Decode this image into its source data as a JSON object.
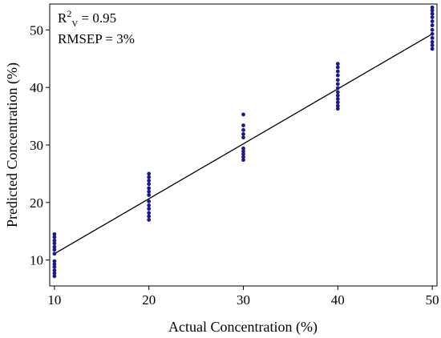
{
  "chart_data": {
    "type": "scatter",
    "xlabel": "Actual Concentration (%)",
    "ylabel": "Predicted Concentration (%)",
    "xlim": [
      9.5,
      50.5
    ],
    "ylim": [
      5.5,
      54.5
    ],
    "x_ticks": [
      10,
      20,
      30,
      40,
      50
    ],
    "y_ticks": [
      10,
      20,
      30,
      40,
      50
    ],
    "grid": false,
    "annotations": {
      "r2_base": "R",
      "r2_sup": "2",
      "r2_sub": "V",
      "r2_value": " = 0.95",
      "rmsep": "RMSEP = 3%"
    },
    "fit_line": {
      "x": [
        10,
        50
      ],
      "y": [
        11.1,
        49.3
      ]
    },
    "points": [
      {
        "x": 10,
        "y": 14.5
      },
      {
        "x": 10,
        "y": 14.0
      },
      {
        "x": 10,
        "y": 13.4
      },
      {
        "x": 10,
        "y": 12.9
      },
      {
        "x": 10,
        "y": 12.3
      },
      {
        "x": 10,
        "y": 11.8
      },
      {
        "x": 10,
        "y": 11.1
      },
      {
        "x": 10,
        "y": 9.8
      },
      {
        "x": 10,
        "y": 9.3
      },
      {
        "x": 10,
        "y": 8.8
      },
      {
        "x": 10,
        "y": 8.2
      },
      {
        "x": 10,
        "y": 7.7
      },
      {
        "x": 10,
        "y": 7.2
      },
      {
        "x": 20,
        "y": 25.0
      },
      {
        "x": 20,
        "y": 24.4
      },
      {
        "x": 20,
        "y": 23.8
      },
      {
        "x": 20,
        "y": 23.2
      },
      {
        "x": 20,
        "y": 22.5
      },
      {
        "x": 20,
        "y": 21.9
      },
      {
        "x": 20,
        "y": 21.3
      },
      {
        "x": 20,
        "y": 20.2
      },
      {
        "x": 20,
        "y": 19.5
      },
      {
        "x": 20,
        "y": 18.9
      },
      {
        "x": 20,
        "y": 18.2
      },
      {
        "x": 20,
        "y": 17.6
      },
      {
        "x": 20,
        "y": 17.0
      },
      {
        "x": 30,
        "y": 35.3
      },
      {
        "x": 30,
        "y": 33.4
      },
      {
        "x": 30,
        "y": 32.6
      },
      {
        "x": 30,
        "y": 31.9
      },
      {
        "x": 30,
        "y": 31.3
      },
      {
        "x": 30,
        "y": 29.4
      },
      {
        "x": 30,
        "y": 28.9
      },
      {
        "x": 30,
        "y": 28.4
      },
      {
        "x": 30,
        "y": 27.9
      },
      {
        "x": 30,
        "y": 27.4
      },
      {
        "x": 40,
        "y": 44.1
      },
      {
        "x": 40,
        "y": 43.5
      },
      {
        "x": 40,
        "y": 42.8
      },
      {
        "x": 40,
        "y": 42.1
      },
      {
        "x": 40,
        "y": 41.3
      },
      {
        "x": 40,
        "y": 40.6
      },
      {
        "x": 40,
        "y": 39.9
      },
      {
        "x": 40,
        "y": 39.2
      },
      {
        "x": 40,
        "y": 38.6
      },
      {
        "x": 40,
        "y": 38.0
      },
      {
        "x": 40,
        "y": 37.4
      },
      {
        "x": 40,
        "y": 36.8
      },
      {
        "x": 40,
        "y": 36.3
      },
      {
        "x": 50,
        "y": 53.9
      },
      {
        "x": 50,
        "y": 53.4
      },
      {
        "x": 50,
        "y": 52.8
      },
      {
        "x": 50,
        "y": 52.2
      },
      {
        "x": 50,
        "y": 51.5
      },
      {
        "x": 50,
        "y": 50.8
      },
      {
        "x": 50,
        "y": 50.0
      },
      {
        "x": 50,
        "y": 49.3
      },
      {
        "x": 50,
        "y": 48.6
      },
      {
        "x": 50,
        "y": 47.9
      },
      {
        "x": 50,
        "y": 47.3
      },
      {
        "x": 50,
        "y": 46.7
      }
    ],
    "colors": {
      "points": "#1a1a8c",
      "line": "#000000",
      "axes": "#000000"
    }
  }
}
